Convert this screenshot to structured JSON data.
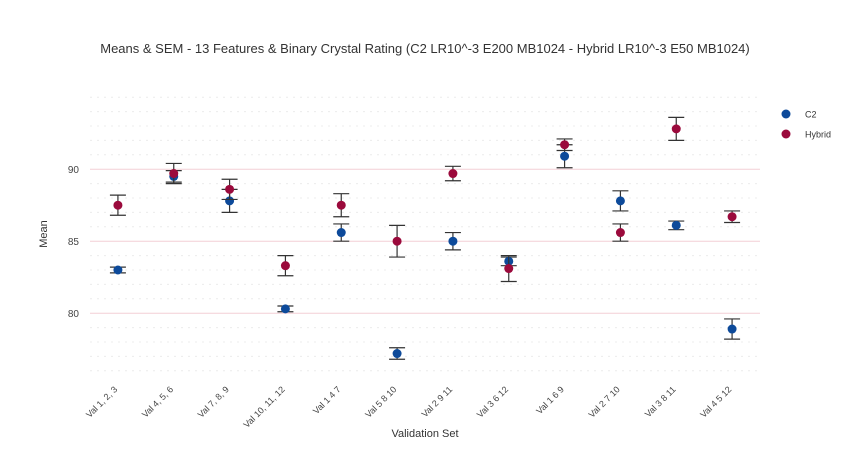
{
  "chart_data": {
    "type": "scatter",
    "title": "Means & SEM - 13 Features & Binary Crystal Rating (C2 LR10^-3 E200 MB1024 - Hybrid LR10^-3 E50 MB1024)",
    "xlabel": "Validation Set",
    "ylabel": "Mean",
    "categories": [
      "Val 1, 2, 3",
      "Val 4, 5, 6",
      "Val 7, 8, 9",
      "Val 10, 11, 12",
      "Val 1 4 7",
      "Val 5 8 10",
      "Val 2 9 11",
      "Val 3 6 12",
      "Val 1 6 9",
      "Val 2 7 10",
      "Val 3 8 11",
      "Val 4 5 12"
    ],
    "ylim": [
      75.5,
      95.5
    ],
    "yticks": [
      80,
      85,
      90
    ],
    "grid": true,
    "legend_position": "top-right",
    "error_bars": "SEM",
    "series": [
      {
        "name": "C2",
        "color": "#0d4a9a",
        "values": [
          83.0,
          89.5,
          87.8,
          80.3,
          85.6,
          77.2,
          85.0,
          83.6,
          90.9,
          87.8,
          86.1,
          78.9
        ],
        "sem": [
          0.2,
          0.4,
          0.8,
          0.2,
          0.6,
          0.4,
          0.6,
          0.3,
          0.8,
          0.7,
          0.3,
          0.7
        ]
      },
      {
        "name": "Hybrid",
        "color": "#9b0a3c",
        "values": [
          87.5,
          89.7,
          88.6,
          83.3,
          87.5,
          85.0,
          89.7,
          83.1,
          91.7,
          85.6,
          92.8,
          86.7
        ],
        "sem": [
          0.7,
          0.7,
          0.7,
          0.7,
          0.8,
          1.1,
          0.5,
          0.9,
          0.4,
          0.6,
          0.8,
          0.4
        ]
      }
    ]
  }
}
